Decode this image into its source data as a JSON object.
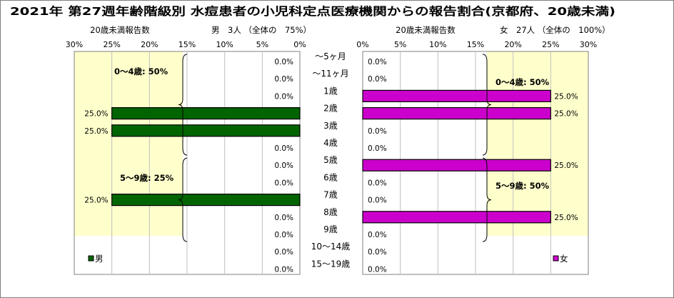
{
  "title": "2021年 第27週年齢階級別 水痘患者の小児科定点医療機関からの報告割合(京都府、20歳未満)",
  "age_groups": [
    "～5ヶ月",
    "～11ヶ月",
    "1歳",
    "2歳",
    "3歳",
    "4歳",
    "5歳",
    "6歳",
    "7歳",
    "8歳",
    "9歳",
    "10～14歳",
    "15～19歳"
  ],
  "colors": {
    "male": "#006400",
    "female": "#cc00cc",
    "band_male": "#ffffcc",
    "band_female": "#ffffcc"
  },
  "chart_data": [
    {
      "type": "bar",
      "orientation": "horizontal",
      "axis_direction": "reversed",
      "axis_caption": "20歳未満報告数",
      "header": "男　3人 （全体の　75%）",
      "legend": "男",
      "legend_position": "bottom-left",
      "xlim": [
        0,
        30
      ],
      "ticks": [
        30,
        25,
        20,
        15,
        10,
        5,
        0
      ],
      "tick_labels": [
        "30%",
        "25%",
        "20%",
        "15%",
        "10%",
        "5%",
        "0%"
      ],
      "grid": true,
      "categories": [
        "～5ヶ月",
        "～11ヶ月",
        "1歳",
        "2歳",
        "3歳",
        "4歳",
        "5歳",
        "6歳",
        "7歳",
        "8歳",
        "9歳",
        "10～14歳",
        "15～19歳"
      ],
      "values": [
        0,
        0,
        0,
        25,
        25,
        0,
        0,
        0,
        25,
        0,
        0,
        0,
        0
      ],
      "value_labels": [
        "0.0%",
        "0.0%",
        "0.0%",
        "25.0%",
        "25.0%",
        "0.0%",
        "0.0%",
        "0.0%",
        "25.0%",
        "0.0%",
        "0.0%",
        "0.0%",
        "0.0%"
      ],
      "annotations": [
        {
          "text": "0～4歳: 50%",
          "from": "～5ヶ月",
          "to": "4歳"
        },
        {
          "text": "5～9歳: 25%",
          "from": "5歳",
          "to": "9歳"
        }
      ]
    },
    {
      "type": "bar",
      "orientation": "horizontal",
      "axis_direction": "normal",
      "axis_caption": "20歳未満報告数",
      "header": "女　27人 （全体の　100%）",
      "legend": "女",
      "legend_position": "bottom-right",
      "xlim": [
        0,
        30
      ],
      "ticks": [
        0,
        5,
        10,
        15,
        20,
        25,
        30
      ],
      "tick_labels": [
        "0%",
        "5%",
        "10%",
        "15%",
        "20%",
        "25%",
        "30%"
      ],
      "grid": true,
      "categories": [
        "～5ヶ月",
        "～11ヶ月",
        "1歳",
        "2歳",
        "3歳",
        "4歳",
        "5歳",
        "6歳",
        "7歳",
        "8歳",
        "9歳",
        "10～14歳",
        "15～19歳"
      ],
      "values": [
        0,
        0,
        25,
        25,
        0,
        0,
        25,
        0,
        0,
        25,
        0,
        0,
        0
      ],
      "value_labels": [
        "0.0%",
        "0.0%",
        "25.0%",
        "25.0%",
        "0.0%",
        "0.0%",
        "25.0%",
        "0.0%",
        "0.0%",
        "25.0%",
        "0.0%",
        "0.0%",
        "0.0%"
      ],
      "annotations": [
        {
          "text": "0～4歳: 50%",
          "from": "～5ヶ月",
          "to": "4歳"
        },
        {
          "text": "5～9歳: 50%",
          "from": "5歳",
          "to": "9歳"
        }
      ]
    }
  ]
}
